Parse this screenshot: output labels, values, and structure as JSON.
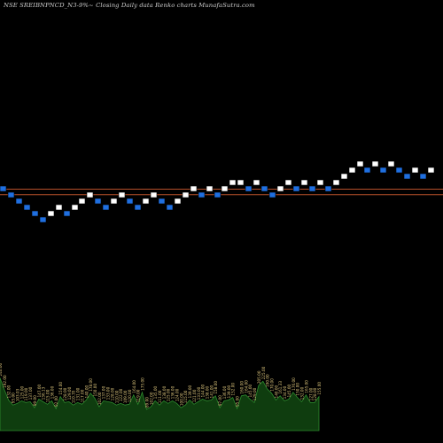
{
  "chart_data": {
    "type": "renko",
    "title": "NSE SREIBNPNCD_N3-9%~ Closing Daily data Renko charts MunafaSutra.com",
    "bricks": [
      {
        "dir": "down",
        "level": 4
      },
      {
        "dir": "down",
        "level": 3
      },
      {
        "dir": "down",
        "level": 2
      },
      {
        "dir": "down",
        "level": 1
      },
      {
        "dir": "down",
        "level": 0
      },
      {
        "dir": "down",
        "level": -1
      },
      {
        "dir": "up",
        "level": 0
      },
      {
        "dir": "up",
        "level": 1
      },
      {
        "dir": "down",
        "level": 0
      },
      {
        "dir": "up",
        "level": 1
      },
      {
        "dir": "up",
        "level": 2
      },
      {
        "dir": "up",
        "level": 3
      },
      {
        "dir": "down",
        "level": 2
      },
      {
        "dir": "down",
        "level": 1
      },
      {
        "dir": "up",
        "level": 2
      },
      {
        "dir": "up",
        "level": 3
      },
      {
        "dir": "down",
        "level": 2
      },
      {
        "dir": "down",
        "level": 1
      },
      {
        "dir": "up",
        "level": 2
      },
      {
        "dir": "up",
        "level": 3
      },
      {
        "dir": "down",
        "level": 2
      },
      {
        "dir": "down",
        "level": 1
      },
      {
        "dir": "up",
        "level": 2
      },
      {
        "dir": "up",
        "level": 3
      },
      {
        "dir": "up",
        "level": 4
      },
      {
        "dir": "down",
        "level": 3
      },
      {
        "dir": "up",
        "level": 4
      },
      {
        "dir": "down",
        "level": 3
      },
      {
        "dir": "up",
        "level": 4
      },
      {
        "dir": "up",
        "level": 5
      },
      {
        "dir": "up",
        "level": 5
      },
      {
        "dir": "down",
        "level": 4
      },
      {
        "dir": "up",
        "level": 5
      },
      {
        "dir": "down",
        "level": 4
      },
      {
        "dir": "down",
        "level": 3
      },
      {
        "dir": "up",
        "level": 4
      },
      {
        "dir": "up",
        "level": 5
      },
      {
        "dir": "down",
        "level": 4
      },
      {
        "dir": "up",
        "level": 5
      },
      {
        "dir": "down",
        "level": 4
      },
      {
        "dir": "up",
        "level": 5
      },
      {
        "dir": "down",
        "level": 4
      },
      {
        "dir": "up",
        "level": 5
      },
      {
        "dir": "up",
        "level": 6
      },
      {
        "dir": "up",
        "level": 7
      },
      {
        "dir": "up",
        "level": 8
      },
      {
        "dir": "down",
        "level": 7
      },
      {
        "dir": "up",
        "level": 8
      },
      {
        "dir": "down",
        "level": 7
      },
      {
        "dir": "up",
        "level": 8
      },
      {
        "dir": "down",
        "level": 7
      },
      {
        "dir": "down",
        "level": 6
      },
      {
        "dir": "up",
        "level": 7
      },
      {
        "dir": "down",
        "level": 6
      },
      {
        "dir": "up",
        "level": 7
      }
    ],
    "reference_lines": [
      {
        "name": "upper",
        "level": 3.5
      },
      {
        "name": "lower",
        "level": 2.6
      }
    ],
    "volume_series": [
      {
        "label": "240.00",
        "value": 0.62
      },
      {
        "label": "192.00",
        "value": 0.48
      },
      {
        "label": "132.00",
        "value": 0.36
      },
      {
        "label": "95.00",
        "value": 0.3
      },
      {
        "label": "103.03",
        "value": 0.32
      },
      {
        "label": "125.00",
        "value": 0.35
      },
      {
        "label": "119.00",
        "value": 0.33
      },
      {
        "label": "137.00",
        "value": 0.34
      },
      {
        "label": "99.00",
        "value": 0.27
      },
      {
        "label": "147.00",
        "value": 0.37
      },
      {
        "label": "136.13",
        "value": 0.34
      },
      {
        "label": "115.00",
        "value": 0.31
      },
      {
        "label": "136.00",
        "value": 0.35
      },
      {
        "label": "92.00",
        "value": 0.26
      },
      {
        "label": "154.00",
        "value": 0.4
      },
      {
        "label": "128.00",
        "value": 0.33
      },
      {
        "label": "129.00",
        "value": 0.34
      },
      {
        "label": "110.35",
        "value": 0.3
      },
      {
        "label": "131.00",
        "value": 0.33
      },
      {
        "label": "117.00",
        "value": 0.31
      },
      {
        "label": "140.00",
        "value": 0.36
      },
      {
        "label": "178.00",
        "value": 0.44
      },
      {
        "label": "150.00",
        "value": 0.38
      },
      {
        "label": "102.00",
        "value": 0.28
      },
      {
        "label": "137.00",
        "value": 0.35
      },
      {
        "label": "133.00",
        "value": 0.34
      },
      {
        "label": "128.00",
        "value": 0.33
      },
      {
        "label": "110.00",
        "value": 0.3
      },
      {
        "label": "122.00",
        "value": 0.32
      },
      {
        "label": "109.00",
        "value": 0.3
      },
      {
        "label": "120.00",
        "value": 0.31
      },
      {
        "label": "164.00",
        "value": 0.42
      },
      {
        "label": "119.00",
        "value": 0.31
      },
      {
        "label": "175.00",
        "value": 0.45
      },
      {
        "label": "89.00",
        "value": 0.25
      },
      {
        "label": "102.00",
        "value": 0.28
      },
      {
        "label": "135.00",
        "value": 0.35
      },
      {
        "label": "111.00",
        "value": 0.3
      },
      {
        "label": "138.00",
        "value": 0.35
      },
      {
        "label": "125.00",
        "value": 0.32
      },
      {
        "label": "136.00",
        "value": 0.35
      },
      {
        "label": "124.00",
        "value": 0.32
      },
      {
        "label": "100.00",
        "value": 0.27
      },
      {
        "label": "115.00",
        "value": 0.3
      },
      {
        "label": "139.00",
        "value": 0.36
      },
      {
        "label": "121.00",
        "value": 0.31
      },
      {
        "label": "133.00",
        "value": 0.34
      },
      {
        "label": "144.00",
        "value": 0.37
      },
      {
        "label": "138.00",
        "value": 0.35
      },
      {
        "label": "141.00",
        "value": 0.36
      },
      {
        "label": "158.00",
        "value": 0.41
      },
      {
        "label": "97.00",
        "value": 0.27
      },
      {
        "label": "136.00",
        "value": 0.35
      },
      {
        "label": "139.00",
        "value": 0.36
      },
      {
        "label": "152.00",
        "value": 0.39
      },
      {
        "label": "95.00",
        "value": 0.26
      },
      {
        "label": "160.00",
        "value": 0.41
      },
      {
        "label": "164.00",
        "value": 0.42
      },
      {
        "label": "145.00",
        "value": 0.37
      },
      {
        "label": "129.00",
        "value": 0.33
      },
      {
        "label": "205.00",
        "value": 0.53
      },
      {
        "label": "225.00",
        "value": 0.58
      },
      {
        "label": "190.00",
        "value": 0.49
      },
      {
        "label": "170.00",
        "value": 0.44
      },
      {
        "label": "140.00",
        "value": 0.36
      },
      {
        "label": "161.33",
        "value": 0.41
      },
      {
        "label": "134.00",
        "value": 0.35
      },
      {
        "label": "145.00",
        "value": 0.37
      },
      {
        "label": "176.00",
        "value": 0.45
      },
      {
        "label": "150.00",
        "value": 0.39
      },
      {
        "label": "132.00",
        "value": 0.34
      },
      {
        "label": "165.00",
        "value": 0.42
      },
      {
        "label": "127.00",
        "value": 0.33
      },
      {
        "label": "128.00",
        "value": 0.33
      },
      {
        "label": "155.00",
        "value": 0.4
      }
    ],
    "colors": {
      "background": "#000000",
      "up_brick": "#ffffff",
      "down_brick": "#1f6fe0",
      "brick_border": "#000000",
      "reference_line": "#b5502a",
      "volume_area": "#0f3d0f",
      "volume_line": "#2e8b2e",
      "volume_label": "#d9c27a"
    }
  }
}
